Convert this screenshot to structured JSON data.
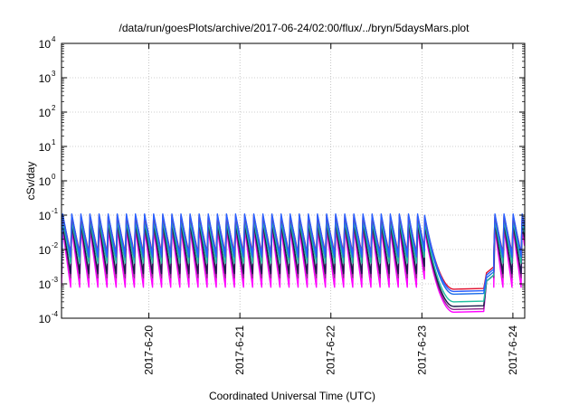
{
  "chart_data": {
    "type": "line",
    "title": "/data/run/goesPlots/archive/2017-06-24/02:00/flux/../bryn/5daysMars.plot",
    "xlabel": "Coordinated Universal Time (UTC)",
    "ylabel": "cSv/day",
    "yscale": "log",
    "ylim": [
      0.0001,
      10000
    ],
    "xlim_days": [
      -0.96,
      4.13
    ],
    "grid": true,
    "legend": "none",
    "y_ticks": [
      {
        "base": "10",
        "exp": "-4",
        "value": 0.0001
      },
      {
        "base": "10",
        "exp": "-3",
        "value": 0.001
      },
      {
        "base": "10",
        "exp": "-2",
        "value": 0.01
      },
      {
        "base": "10",
        "exp": "-1",
        "value": 0.1
      },
      {
        "base": "10",
        "exp": "0",
        "value": 1
      },
      {
        "base": "10",
        "exp": "1",
        "value": 10
      },
      {
        "base": "10",
        "exp": "2",
        "value": 100
      },
      {
        "base": "10",
        "exp": "3",
        "value": 1000
      },
      {
        "base": "10",
        "exp": "4",
        "value": 10000
      }
    ],
    "x_ticks": [
      {
        "label": "2017-6-20",
        "day": 0
      },
      {
        "label": "2017-6-21",
        "day": 1
      },
      {
        "label": "2017-6-22",
        "day": 2
      },
      {
        "label": "2017-6-23",
        "day": 3
      },
      {
        "label": "2017-6-24",
        "day": 4
      }
    ],
    "oscillation": {
      "period_days": 0.1,
      "x_start": -0.96,
      "drop_start": 3.03,
      "plateau_start": 3.35,
      "plateau_end": 3.68,
      "recover_end": 3.79,
      "x_end": 4.13,
      "samples_per_period": 8
    },
    "series": [
      {
        "color": "#ff00ff",
        "peak": 0.04,
        "trough": 0.0008,
        "plateau": 0.00015
      },
      {
        "color": "#8c2a8c",
        "peak": 0.05,
        "trough": 0.0015,
        "plateau": 0.00018
      },
      {
        "color": "#1a1a4a",
        "peak": 0.06,
        "trough": 0.002,
        "plateau": 0.00022
      },
      {
        "color": "#20c0a0",
        "peak": 0.07,
        "trough": 0.004,
        "plateau": 0.0003
      },
      {
        "color": "#1c6ee8",
        "peak": 0.09,
        "trough": 0.006,
        "plateau": 0.0005
      },
      {
        "color": "#e01030",
        "peak": 0.1,
        "trough": 0.008,
        "plateau": 0.0007
      },
      {
        "color": "#2860ff",
        "peak": 0.11,
        "trough": 0.007,
        "plateau": 0.0006
      }
    ]
  }
}
